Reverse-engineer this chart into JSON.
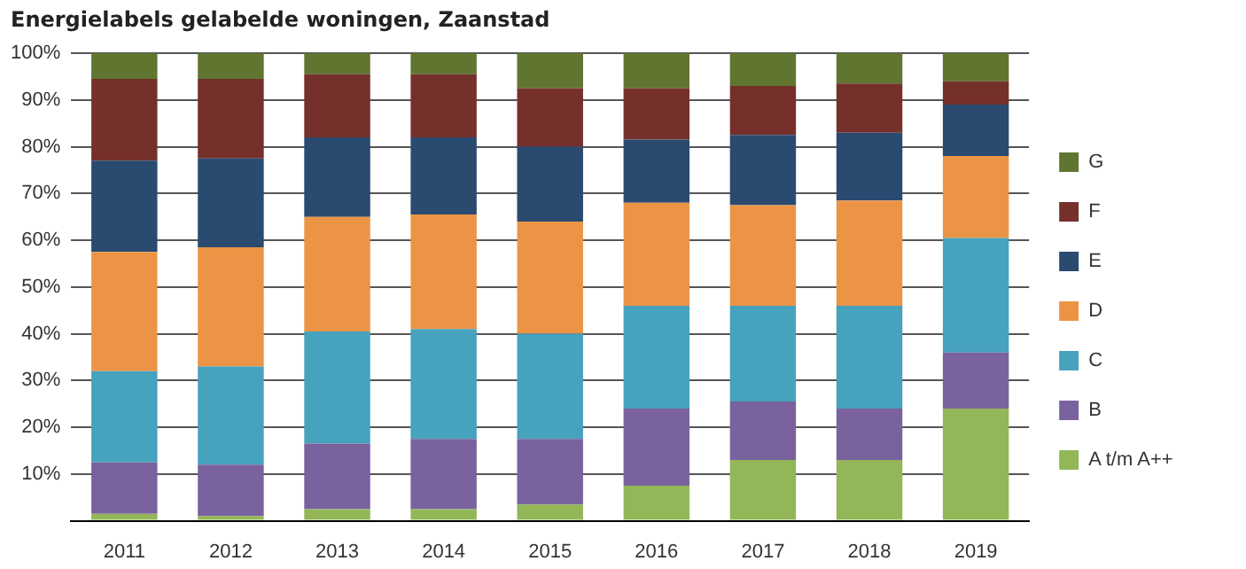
{
  "chart_data": {
    "type": "bar",
    "title": "Energielabels gelabelde woningen, Zaanstad",
    "stacked": true,
    "legend": "right",
    "grid": "y",
    "categories": [
      "2011",
      "2012",
      "2013",
      "2014",
      "2015",
      "2016",
      "2017",
      "2018",
      "2019"
    ],
    "series": [
      {
        "name": "A t/m A++",
        "color": "#93b658",
        "values": [
          1.5,
          1,
          2.5,
          2.5,
          3.5,
          7.5,
          13,
          13,
          24
        ]
      },
      {
        "name": "B",
        "color": "#7a629e",
        "values": [
          11,
          11,
          14,
          15,
          14,
          16.5,
          12.5,
          11,
          12
        ]
      },
      {
        "name": "C",
        "color": "#47a2bd",
        "values": [
          19.5,
          21,
          24,
          23.5,
          22.5,
          22,
          20.5,
          22,
          24.5
        ]
      },
      {
        "name": "D",
        "color": "#ec9446",
        "values": [
          25.5,
          25.5,
          24.5,
          24.5,
          24,
          22,
          21.5,
          22.5,
          17.5
        ]
      },
      {
        "name": "E",
        "color": "#2a4a70",
        "values": [
          19.5,
          19,
          17,
          16.5,
          16,
          13.5,
          15,
          14.5,
          11
        ]
      },
      {
        "name": "F",
        "color": "#75302b",
        "values": [
          17.5,
          17,
          13.5,
          13.5,
          12.5,
          11,
          10.5,
          10.5,
          5
        ]
      },
      {
        "name": "G",
        "color": "#5f7530",
        "values": [
          5.5,
          5.5,
          4.5,
          4.5,
          7.5,
          7.5,
          7,
          6.5,
          6
        ]
      }
    ],
    "ylim": [
      0,
      100
    ],
    "yticks": [
      {
        "value": 0,
        "label": null
      },
      {
        "value": 10,
        "label": "10%"
      },
      {
        "value": 20,
        "label": "20%"
      },
      {
        "value": 30,
        "label": "30%"
      },
      {
        "value": 40,
        "label": "40%"
      },
      {
        "value": 50,
        "label": "50%"
      },
      {
        "value": 60,
        "label": "60%"
      },
      {
        "value": 70,
        "label": "70%"
      },
      {
        "value": 80,
        "label": "80%"
      },
      {
        "value": 90,
        "label": "90%"
      },
      {
        "value": 100,
        "label": "100%"
      }
    ]
  }
}
